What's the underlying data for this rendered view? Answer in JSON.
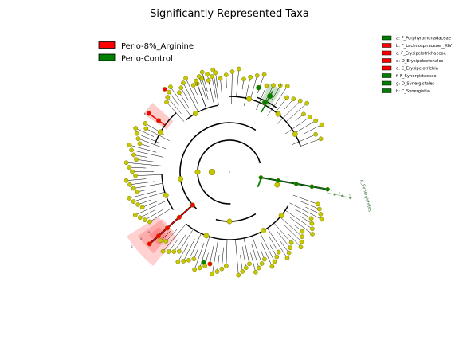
{
  "title": "Significantly Represented Taxa",
  "groups": [
    {
      "name": "Perio-8%_Arginine",
      "color": "#ff0000"
    },
    {
      "name": "Perio-Control",
      "color": "#008000"
    }
  ],
  "node_colors": {
    "neutral": "#c8c800",
    "neutral_stroke": "#7a7a00"
  },
  "side_legend": [
    {
      "text": "a: F_Porphyromonadaceae",
      "group": 1
    },
    {
      "text": "b: F_Lachnospiraceae__XIV",
      "group": 0
    },
    {
      "text": "c: F_Erysipelotrichaceae",
      "group": 0
    },
    {
      "text": "d: O_Erysipelotrichales",
      "group": 0
    },
    {
      "text": "e: C_Erysipelotrichia",
      "group": 0
    },
    {
      "text": "f: F_Synergistaceae",
      "group": 1
    },
    {
      "text": "g: O_Synergistales",
      "group": 1
    },
    {
      "text": "h: C_Synergistia",
      "group": 1
    }
  ],
  "clade_labels": [
    {
      "text": "a",
      "group": 1
    },
    {
      "text": "b",
      "group": 0
    },
    {
      "text": "c",
      "group": 0
    },
    {
      "text": "d",
      "group": 0
    },
    {
      "text": "e",
      "group": 0
    }
  ],
  "outer_labels": [
    {
      "text": "p_Synergistetes",
      "group": 1
    }
  ],
  "inner_labels": [
    {
      "text": "f",
      "group": 1
    },
    {
      "text": "g",
      "group": 1
    },
    {
      "text": "h",
      "group": 1
    }
  ]
}
